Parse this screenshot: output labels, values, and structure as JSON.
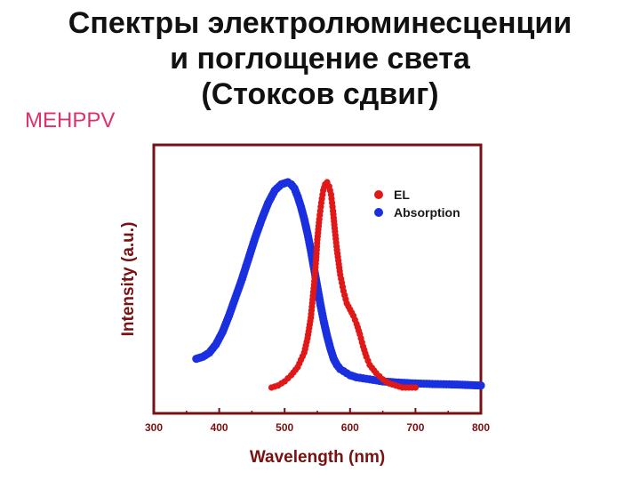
{
  "slide": {
    "title_line1": "Спектры электролюминесценции",
    "title_line2": "и поглощение света",
    "title_line3": "(Стоксов сдвиг)",
    "material": "MEHPPV"
  },
  "colors": {
    "el": "#e01818",
    "absorption": "#1a2fe0",
    "axis": "#7a1010",
    "material": "#e0306a"
  },
  "chart_data": {
    "type": "scatter",
    "title": "",
    "xlabel": "Wavelength (nm)",
    "ylabel": "Intensity (a.u.)",
    "xlim": [
      300,
      800
    ],
    "ylim": [
      0,
      1
    ],
    "xticks": [
      300,
      400,
      500,
      600,
      700,
      800
    ],
    "y_ticks_labeled": false,
    "grid": false,
    "legend_position": "top-right",
    "series": [
      {
        "name": "EL",
        "color_key": "el",
        "x": [
          480,
          490,
          500,
          510,
          520,
          530,
          535,
          540,
          545,
          548,
          550,
          553,
          556,
          559,
          562,
          565,
          568,
          571,
          574,
          577,
          580,
          585,
          590,
          595,
          600,
          605,
          610,
          615,
          620,
          625,
          630,
          640,
          650,
          660,
          670,
          680,
          690,
          700
        ],
        "y": [
          0.0,
          0.01,
          0.03,
          0.06,
          0.1,
          0.17,
          0.24,
          0.34,
          0.5,
          0.62,
          0.72,
          0.82,
          0.9,
          0.96,
          0.99,
          1.0,
          0.98,
          0.94,
          0.86,
          0.76,
          0.67,
          0.55,
          0.47,
          0.41,
          0.38,
          0.35,
          0.31,
          0.26,
          0.2,
          0.15,
          0.11,
          0.07,
          0.04,
          0.02,
          0.01,
          0.0,
          0.0,
          0.0
        ]
      },
      {
        "name": "Absorption",
        "color_key": "absorption",
        "x": [
          365,
          375,
          385,
          395,
          405,
          415,
          425,
          435,
          445,
          455,
          465,
          475,
          485,
          495,
          505,
          510,
          515,
          520,
          525,
          530,
          535,
          540,
          545,
          550,
          555,
          560,
          565,
          570,
          575,
          580,
          585,
          590,
          595,
          600,
          610,
          620,
          630,
          640,
          650,
          670,
          700,
          730,
          760,
          800
        ],
        "y": [
          0.14,
          0.15,
          0.17,
          0.21,
          0.27,
          0.35,
          0.44,
          0.53,
          0.63,
          0.73,
          0.82,
          0.9,
          0.96,
          0.99,
          1.0,
          0.99,
          0.97,
          0.93,
          0.88,
          0.82,
          0.75,
          0.67,
          0.58,
          0.49,
          0.4,
          0.32,
          0.25,
          0.19,
          0.14,
          0.11,
          0.09,
          0.08,
          0.07,
          0.06,
          0.05,
          0.045,
          0.04,
          0.035,
          0.03,
          0.025,
          0.02,
          0.017,
          0.015,
          0.01
        ]
      }
    ]
  }
}
